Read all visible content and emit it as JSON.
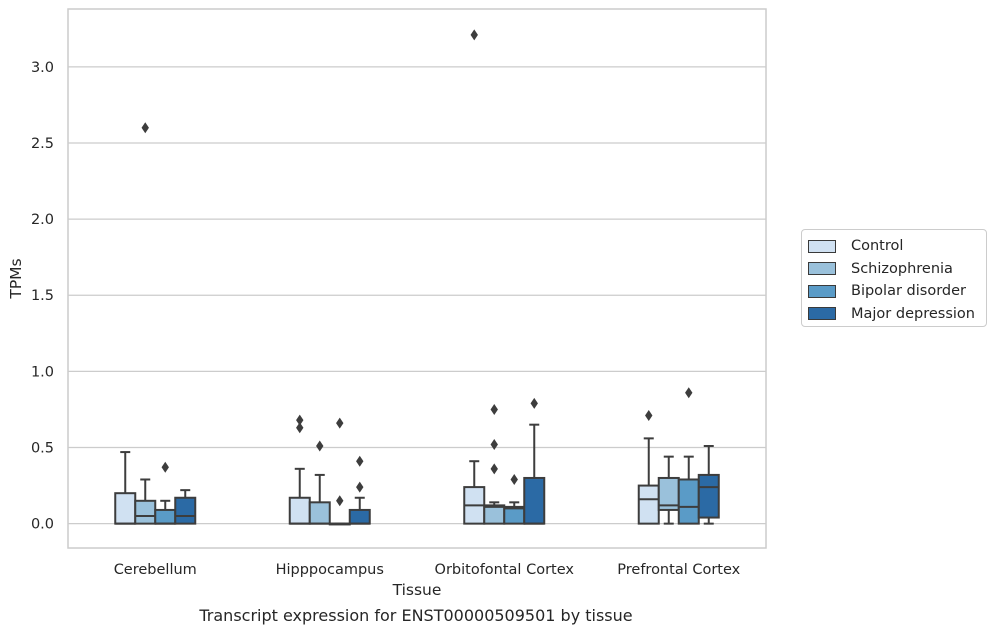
{
  "caption": "Transcript expression for ENST00000509501 by tissue",
  "chart_data": {
    "type": "box",
    "xlabel": "Tissue",
    "ylabel": "TPMs",
    "ylim": [
      -0.16,
      3.38
    ],
    "yticks": [
      "0.0",
      "0.5",
      "1.0",
      "1.5",
      "2.0",
      "2.5",
      "3.0"
    ],
    "grid": true,
    "legend_position": "right",
    "categories": [
      "Cerebellum",
      "Hipppocampus",
      "Orbitofontal Cortex",
      "Prefrontal Cortex"
    ],
    "series": [
      {
        "name": "Control",
        "color": "#d0e1f2",
        "boxes": [
          {
            "q1": 0,
            "median": 0,
            "q3": 0.2,
            "whisker_low": 0,
            "whisker_high": 0.47,
            "outliers": []
          },
          {
            "q1": 0,
            "median": 0,
            "q3": 0.17,
            "whisker_low": 0,
            "whisker_high": 0.36,
            "outliers": [
              0.63,
              0.68
            ]
          },
          {
            "q1": 0,
            "median": 0.12,
            "q3": 0.24,
            "whisker_low": 0,
            "whisker_high": 0.41,
            "outliers": [
              3.21
            ]
          },
          {
            "q1": 0,
            "median": 0.16,
            "q3": 0.25,
            "whisker_low": 0,
            "whisker_high": 0.56,
            "outliers": [
              0.71
            ]
          }
        ]
      },
      {
        "name": "Schizophrenia",
        "color": "#9ac1db",
        "boxes": [
          {
            "q1": 0,
            "median": 0.05,
            "q3": 0.15,
            "whisker_low": 0,
            "whisker_high": 0.29,
            "outliers": [
              2.6
            ]
          },
          {
            "q1": 0,
            "median": 0,
            "q3": 0.14,
            "whisker_low": 0,
            "whisker_high": 0.32,
            "outliers": [
              0.51
            ]
          },
          {
            "q1": 0,
            "median": 0.11,
            "q3": 0.12,
            "whisker_low": 0,
            "whisker_high": 0.14,
            "outliers": [
              0.36,
              0.52,
              0.75
            ]
          },
          {
            "q1": 0.09,
            "median": 0.12,
            "q3": 0.3,
            "whisker_low": 0,
            "whisker_high": 0.44,
            "outliers": []
          }
        ]
      },
      {
        "name": "Bipolar disorder",
        "color": "#5a9bc7",
        "boxes": [
          {
            "q1": 0,
            "median": 0,
            "q3": 0.09,
            "whisker_low": 0,
            "whisker_high": 0.15,
            "outliers": [
              0.37
            ]
          },
          {
            "q1": 0,
            "median": 0,
            "q3": 0,
            "whisker_low": 0,
            "whisker_high": 0,
            "outliers": [
              0.15,
              0.66
            ]
          },
          {
            "q1": 0,
            "median": 0.1,
            "q3": 0.11,
            "whisker_low": 0,
            "whisker_high": 0.14,
            "outliers": [
              0.29
            ]
          },
          {
            "q1": 0,
            "median": 0.11,
            "q3": 0.29,
            "whisker_low": 0,
            "whisker_high": 0.44,
            "outliers": [
              0.86
            ]
          }
        ]
      },
      {
        "name": "Major depression",
        "color": "#2b6aa5",
        "boxes": [
          {
            "q1": 0,
            "median": 0.05,
            "q3": 0.17,
            "whisker_low": 0,
            "whisker_high": 0.22,
            "outliers": []
          },
          {
            "q1": 0,
            "median": 0,
            "q3": 0.09,
            "whisker_low": 0,
            "whisker_high": 0.17,
            "outliers": [
              0.24,
              0.41
            ]
          },
          {
            "q1": 0,
            "median": 0,
            "q3": 0.3,
            "whisker_low": 0,
            "whisker_high": 0.65,
            "outliers": [
              0.79
            ]
          },
          {
            "q1": 0.04,
            "median": 0.24,
            "q3": 0.32,
            "whisker_low": 0,
            "whisker_high": 0.51,
            "outliers": []
          }
        ]
      }
    ]
  }
}
